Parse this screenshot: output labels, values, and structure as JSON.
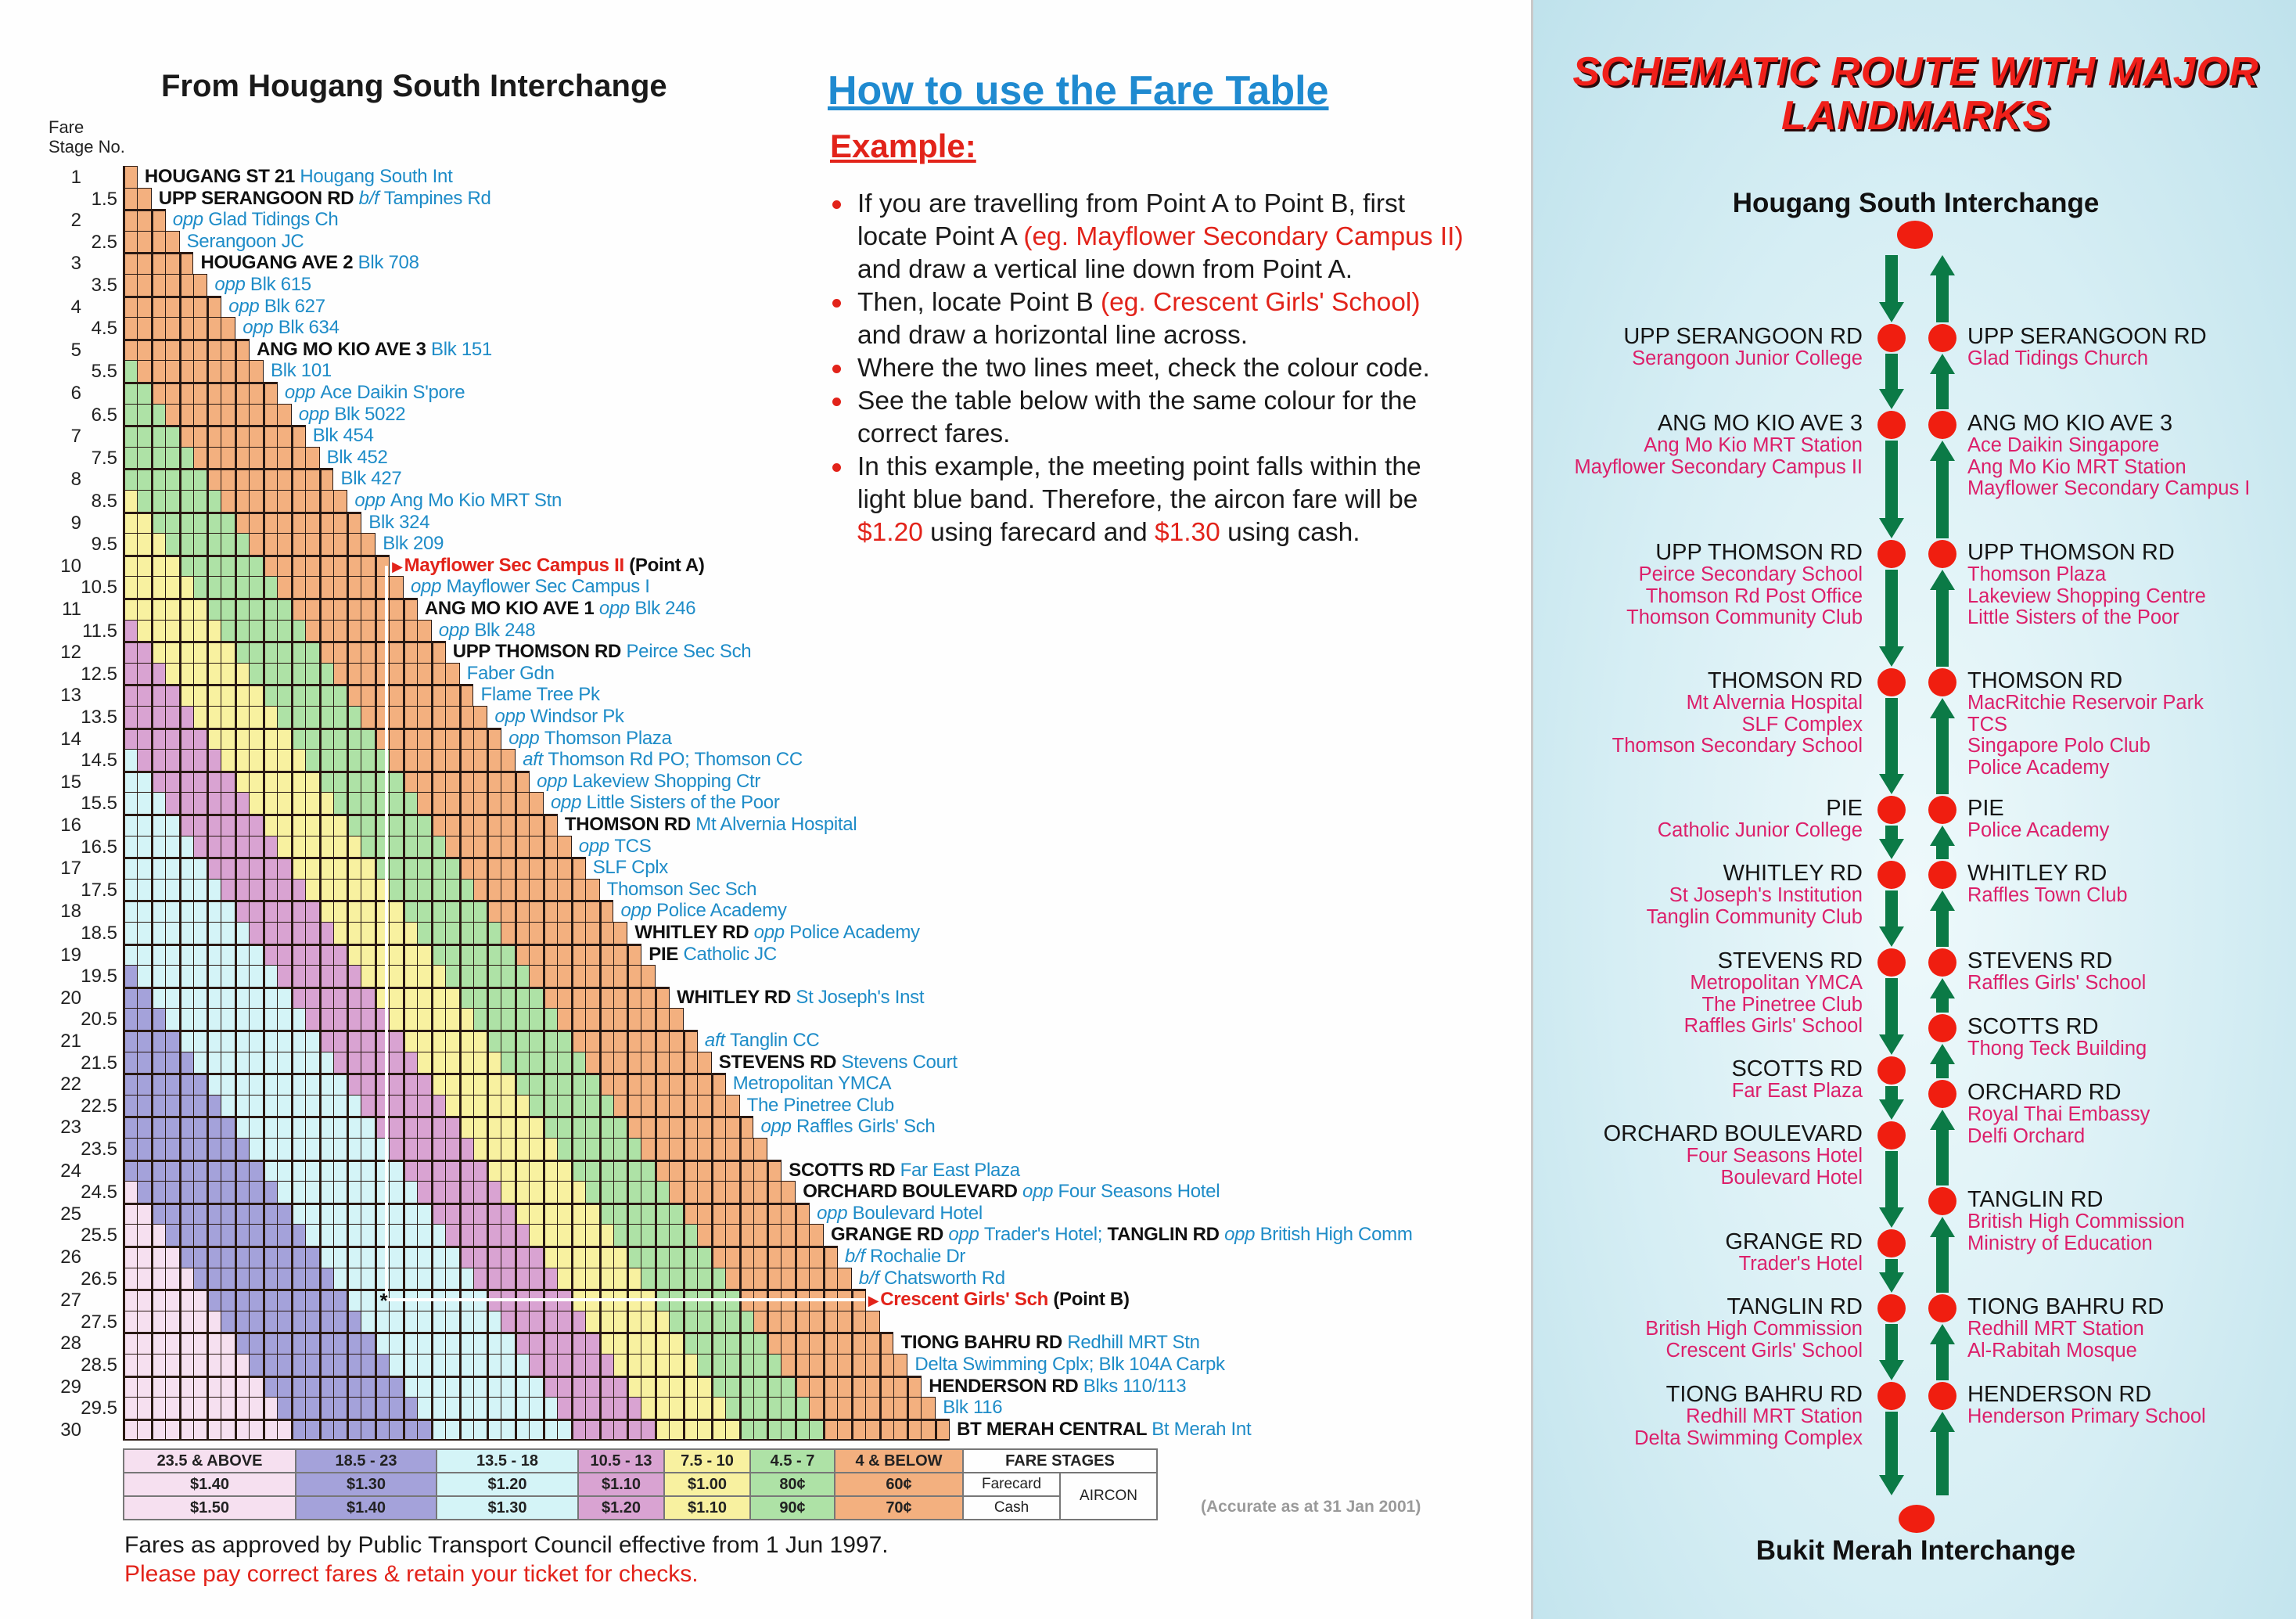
{
  "fare_table": {
    "title": "From Hougang South Interchange",
    "stage_header": [
      "Fare",
      "Stage No."
    ],
    "stages": [
      "1",
      "1.5",
      "2",
      "2.5",
      "3",
      "3.5",
      "4",
      "4.5",
      "5",
      "5.5",
      "6",
      "6.5",
      "7",
      "7.5",
      "8",
      "8.5",
      "9",
      "9.5",
      "10",
      "10.5",
      "11",
      "11.5",
      "12",
      "12.5",
      "13",
      "13.5",
      "14",
      "14.5",
      "15",
      "15.5",
      "16",
      "16.5",
      "17",
      "17.5",
      "18",
      "18.5",
      "19",
      "19.5",
      "20",
      "20.5",
      "21",
      "21.5",
      "22",
      "22.5",
      "23",
      "23.5",
      "24",
      "24.5",
      "25",
      "25.5",
      "26",
      "26.5",
      "27",
      "27.5",
      "28",
      "28.5",
      "29",
      "29.5",
      "30"
    ],
    "rows": [
      {
        "segs": [
          [
            "b",
            "HOUGANG ST 21 "
          ],
          [
            "t",
            "Hougang South Int"
          ]
        ]
      },
      {
        "segs": [
          [
            "b",
            "UPP SERANGOON RD "
          ],
          [
            "i",
            "b/f "
          ],
          [
            "t",
            "Tampines Rd"
          ]
        ]
      },
      {
        "segs": [
          [
            "i",
            "opp "
          ],
          [
            "t",
            "Glad Tidings Ch"
          ]
        ]
      },
      {
        "segs": [
          [
            "t",
            "Serangoon JC"
          ]
        ]
      },
      {
        "segs": [
          [
            "b",
            "HOUGANG AVE 2 "
          ],
          [
            "t",
            "Blk 708"
          ]
        ]
      },
      {
        "segs": [
          [
            "i",
            "opp "
          ],
          [
            "t",
            "Blk 615"
          ]
        ]
      },
      {
        "segs": [
          [
            "i",
            "opp "
          ],
          [
            "t",
            "Blk 627"
          ]
        ]
      },
      {
        "segs": [
          [
            "i",
            "opp "
          ],
          [
            "t",
            "Blk 634"
          ]
        ]
      },
      {
        "segs": [
          [
            "b",
            "ANG MO KIO AVE 3 "
          ],
          [
            "t",
            "Blk 151"
          ]
        ]
      },
      {
        "segs": [
          [
            "t",
            "Blk 101"
          ]
        ]
      },
      {
        "segs": [
          [
            "i",
            "opp "
          ],
          [
            "t",
            "Ace Daikin S'pore"
          ]
        ]
      },
      {
        "segs": [
          [
            "i",
            "opp "
          ],
          [
            "t",
            "Blk 5022"
          ]
        ]
      },
      {
        "segs": [
          [
            "t",
            "Blk 454"
          ]
        ]
      },
      {
        "segs": [
          [
            "t",
            "Blk 452"
          ]
        ]
      },
      {
        "segs": [
          [
            "t",
            "Blk 427"
          ]
        ]
      },
      {
        "segs": [
          [
            "i",
            "opp "
          ],
          [
            "t",
            "Ang Mo Kio MRT Stn"
          ]
        ]
      },
      {
        "segs": [
          [
            "t",
            "Blk 324"
          ]
        ]
      },
      {
        "segs": [
          [
            "t",
            "Blk 209"
          ]
        ]
      },
      {
        "marker": true,
        "segs": [
          [
            "r",
            "Mayflower Sec Campus II"
          ],
          [
            "b",
            " (Point A)"
          ]
        ]
      },
      {
        "segs": [
          [
            "i",
            "opp "
          ],
          [
            "t",
            "Mayflower Sec Campus I"
          ]
        ]
      },
      {
        "segs": [
          [
            "b",
            "ANG MO KIO AVE 1 "
          ],
          [
            "i",
            "opp "
          ],
          [
            "t",
            "Blk 246"
          ]
        ]
      },
      {
        "segs": [
          [
            "i",
            "opp "
          ],
          [
            "t",
            "Blk 248"
          ]
        ]
      },
      {
        "segs": [
          [
            "b",
            "UPP THOMSON RD "
          ],
          [
            "t",
            "Peirce Sec Sch"
          ]
        ]
      },
      {
        "segs": [
          [
            "t",
            "Faber Gdn"
          ]
        ]
      },
      {
        "segs": [
          [
            "t",
            "Flame Tree Pk"
          ]
        ]
      },
      {
        "segs": [
          [
            "i",
            "opp "
          ],
          [
            "t",
            "Windsor Pk"
          ]
        ]
      },
      {
        "segs": [
          [
            "i",
            "opp "
          ],
          [
            "t",
            "Thomson Plaza"
          ]
        ]
      },
      {
        "segs": [
          [
            "i",
            "aft "
          ],
          [
            "t",
            "Thomson Rd PO;  Thomson CC"
          ]
        ]
      },
      {
        "segs": [
          [
            "i",
            "opp "
          ],
          [
            "t",
            "Lakeview Shopping Ctr"
          ]
        ]
      },
      {
        "segs": [
          [
            "i",
            "opp "
          ],
          [
            "t",
            "Little Sisters of the Poor"
          ]
        ]
      },
      {
        "segs": [
          [
            "b",
            "THOMSON RD "
          ],
          [
            "t",
            "Mt Alvernia Hospital"
          ]
        ]
      },
      {
        "segs": [
          [
            "i",
            "opp "
          ],
          [
            "t",
            "TCS"
          ]
        ]
      },
      {
        "segs": [
          [
            "t",
            "SLF Cplx"
          ]
        ]
      },
      {
        "segs": [
          [
            "t",
            "Thomson Sec Sch"
          ]
        ]
      },
      {
        "segs": [
          [
            "i",
            "opp "
          ],
          [
            "t",
            "Police Academy"
          ]
        ]
      },
      {
        "segs": [
          [
            "b",
            "WHITLEY RD "
          ],
          [
            "i",
            "opp "
          ],
          [
            "t",
            "Police Academy"
          ]
        ]
      },
      {
        "segs": [
          [
            "b",
            "PIE "
          ],
          [
            "t",
            "Catholic JC"
          ]
        ]
      },
      {
        "segs": []
      },
      {
        "segs": [
          [
            "b",
            "WHITLEY RD "
          ],
          [
            "t",
            "St Joseph's Inst"
          ]
        ]
      },
      {
        "segs": []
      },
      {
        "segs": [
          [
            "i",
            "aft "
          ],
          [
            "t",
            "Tanglin CC"
          ]
        ]
      },
      {
        "segs": [
          [
            "b",
            "STEVENS RD "
          ],
          [
            "t",
            "Stevens Court"
          ]
        ]
      },
      {
        "segs": [
          [
            "t",
            "Metropolitan YMCA"
          ]
        ]
      },
      {
        "segs": [
          [
            "t",
            "The Pinetree Club"
          ]
        ]
      },
      {
        "segs": [
          [
            "i",
            "opp "
          ],
          [
            "t",
            "Raffles Girls' Sch"
          ]
        ]
      },
      {
        "segs": []
      },
      {
        "segs": [
          [
            "b",
            "SCOTTS RD "
          ],
          [
            "t",
            "Far East Plaza"
          ]
        ]
      },
      {
        "segs": [
          [
            "b",
            "ORCHARD BOULEVARD "
          ],
          [
            "i",
            "opp "
          ],
          [
            "t",
            "Four Seasons Hotel"
          ]
        ]
      },
      {
        "segs": [
          [
            "i",
            "opp "
          ],
          [
            "t",
            "Boulevard Hotel"
          ]
        ]
      },
      {
        "segs": [
          [
            "b",
            "GRANGE RD "
          ],
          [
            "i",
            "opp "
          ],
          [
            "t",
            "Trader's Hotel; "
          ],
          [
            "b",
            "TANGLIN RD "
          ],
          [
            "i",
            "opp "
          ],
          [
            "t",
            "British High Comm"
          ]
        ]
      },
      {
        "segs": [
          [
            "i",
            "b/f "
          ],
          [
            "t",
            "Rochalie Dr"
          ]
        ]
      },
      {
        "segs": [
          [
            "i",
            "b/f "
          ],
          [
            "t",
            "Chatsworth Rd"
          ]
        ]
      },
      {
        "marker": true,
        "segs": [
          [
            "r",
            "Crescent Girls' Sch"
          ],
          [
            "b",
            " (Point B)"
          ]
        ]
      },
      {
        "segs": []
      },
      {
        "segs": [
          [
            "b",
            "TIONG BAHRU RD "
          ],
          [
            "t",
            "Redhill MRT Stn"
          ]
        ]
      },
      {
        "segs": [
          [
            "t",
            "Delta Swimming Cplx;  Blk 104A Carpk"
          ]
        ]
      },
      {
        "segs": [
          [
            "b",
            "HENDERSON RD "
          ],
          [
            "t",
            "Blks 110/113"
          ]
        ]
      },
      {
        "segs": [
          [
            "t",
            "Blk 116"
          ]
        ]
      },
      {
        "segs": [
          [
            "b",
            "BT MERAH CENTRAL "
          ],
          [
            "t",
            "Bt Merah Int"
          ]
        ]
      }
    ],
    "example_point_a_stage": 10,
    "example_point_b_stage": 27,
    "meeting_marker": "*"
  },
  "fare_bands": [
    {
      "range": "23.5 & ABOVE",
      "min_stages": 23.5,
      "farecard": "$1.40",
      "cash": "$1.50",
      "color": "#f6e0f0"
    },
    {
      "range": "18.5 - 23",
      "min_stages": 18.5,
      "farecard": "$1.30",
      "cash": "$1.40",
      "color": "#a4a2da"
    },
    {
      "range": "13.5 - 18",
      "min_stages": 13.5,
      "farecard": "$1.20",
      "cash": "$1.30",
      "color": "#d4f4f7"
    },
    {
      "range": "10.5 - 13",
      "min_stages": 10.5,
      "farecard": "$1.10",
      "cash": "$1.20",
      "color": "#d9a3d2"
    },
    {
      "range": "7.5 - 10",
      "min_stages": 7.5,
      "farecard": "$1.00",
      "cash": "$1.10",
      "color": "#f8f1a0"
    },
    {
      "range": "4.5 - 7",
      "min_stages": 4.5,
      "farecard": "80¢",
      "cash": "90¢",
      "color": "#aee2a6"
    },
    {
      "range": "4 & BELOW",
      "min_stages": 0,
      "farecard": "60¢",
      "cash": "70¢",
      "color": "#f3b07f"
    }
  ],
  "legend": {
    "fare_stages": "FARE STAGES",
    "farecard": "Farecard",
    "cash": "Cash",
    "aircon": "AIRCON"
  },
  "accurate_note": "(Accurate as at 31 Jan 2001)",
  "fares_note": "Fares as approved by Public Transport Council effective from 1 Jun 1997.",
  "pay_note": "Please pay correct fares & retain your ticket for checks.",
  "howto": {
    "title": "How to use the Fare Table",
    "example": "Example:",
    "bullets": [
      [
        [
          "n",
          "If you are travelling from Point A to Point B, first locate Point A "
        ],
        [
          "r",
          "(eg. Mayflower Secondary Campus II)"
        ],
        [
          "n",
          " and draw a vertical line down from Point A."
        ]
      ],
      [
        [
          "n",
          "Then, locate Point B "
        ],
        [
          "r",
          "(eg. Crescent Girls' School)"
        ],
        [
          "n",
          " and draw a horizontal line across."
        ]
      ],
      [
        [
          "n",
          "Where the two lines meet, check the colour code."
        ]
      ],
      [
        [
          "n",
          "See the table below with the same colour for the correct fares."
        ]
      ],
      [
        [
          "n",
          "In this example, the meeting point falls within the light blue band.  Therefore, the aircon fare will be "
        ],
        [
          "r",
          "$1.20"
        ],
        [
          "n",
          " using farecard and "
        ],
        [
          "r",
          "$1.30"
        ],
        [
          "n",
          " using cash."
        ]
      ]
    ]
  },
  "schematic": {
    "title_lines": [
      "SCHEMATIC ROUTE WITH MAJOR",
      "LANDMARKS"
    ],
    "start": "Hougang South Interchange",
    "end": "Bukit Merah Interchange",
    "colors": {
      "dot": "#f01e10",
      "arrow": "#0b7a46",
      "landmark": "#dc1f6a"
    },
    "left": [
      {
        "road": "UPP SERANGOON RD",
        "landmarks": [
          "Serangoon Junior College"
        ]
      },
      {
        "road": "ANG MO KIO AVE 3",
        "landmarks": [
          "Ang Mo Kio MRT Station",
          "Mayflower Secondary Campus II"
        ]
      },
      {
        "road": "UPP THOMSON RD",
        "landmarks": [
          "Peirce Secondary School",
          "Thomson Rd Post Office",
          "Thomson Community Club"
        ]
      },
      {
        "road": "THOMSON RD",
        "landmarks": [
          "Mt Alvernia Hospital",
          "SLF Complex",
          "Thomson Secondary School"
        ]
      },
      {
        "road": "PIE",
        "landmarks": [
          "Catholic Junior College"
        ]
      },
      {
        "road": "WHITLEY RD",
        "landmarks": [
          "St Joseph's Institution",
          "Tanglin Community Club"
        ]
      },
      {
        "road": "STEVENS RD",
        "landmarks": [
          "Metropolitan YMCA",
          "The Pinetree Club",
          "Raffles Girls' School"
        ]
      },
      {
        "road": "SCOTTS RD",
        "landmarks": [
          "Far East Plaza"
        ]
      },
      {
        "road": "ORCHARD BOULEVARD",
        "landmarks": [
          "Four Seasons Hotel",
          "Boulevard Hotel"
        ]
      },
      {
        "road": "GRANGE RD",
        "landmarks": [
          "Trader's Hotel"
        ]
      },
      {
        "road": "TANGLIN RD",
        "landmarks": [
          "British High Commission",
          "Crescent Girls' School"
        ]
      },
      {
        "road": "TIONG BAHRU RD",
        "landmarks": [
          "Redhill MRT Station",
          "Delta Swimming Complex"
        ]
      }
    ],
    "right": [
      {
        "road": "UPP SERANGOON RD",
        "landmarks": [
          "Glad Tidings Church"
        ]
      },
      {
        "road": "ANG MO KIO AVE 3",
        "landmarks": [
          "Ace Daikin Singapore",
          "Ang Mo Kio MRT Station",
          "Mayflower Secondary Campus I"
        ]
      },
      {
        "road": "UPP THOMSON RD",
        "landmarks": [
          "Thomson Plaza",
          "Lakeview Shopping Centre",
          "Little Sisters of the Poor"
        ]
      },
      {
        "road": "THOMSON RD",
        "landmarks": [
          "MacRitchie Reservoir Park",
          "TCS",
          "Singapore Polo Club",
          "Police Academy"
        ]
      },
      {
        "road": "PIE",
        "landmarks": [
          "Police Academy"
        ]
      },
      {
        "road": "WHITLEY RD",
        "landmarks": [
          "Raffles Town Club"
        ]
      },
      {
        "road": "STEVENS RD",
        "landmarks": [
          "Raffles Girls' School"
        ]
      },
      {
        "road": "SCOTTS RD",
        "landmarks": [
          "Thong Teck Building"
        ]
      },
      {
        "road": "ORCHARD RD",
        "landmarks": [
          "Royal Thai Embassy",
          "Delfi Orchard"
        ]
      },
      {
        "road": "TANGLIN RD",
        "landmarks": [
          "British High Commission",
          "Ministry of Education"
        ]
      },
      {
        "road": "TIONG BAHRU RD",
        "landmarks": [
          "Redhill MRT Station",
          "Al-Rabitah Mosque"
        ]
      },
      {
        "road": "HENDERSON RD",
        "landmarks": [
          "Henderson Primary School"
        ]
      }
    ]
  }
}
